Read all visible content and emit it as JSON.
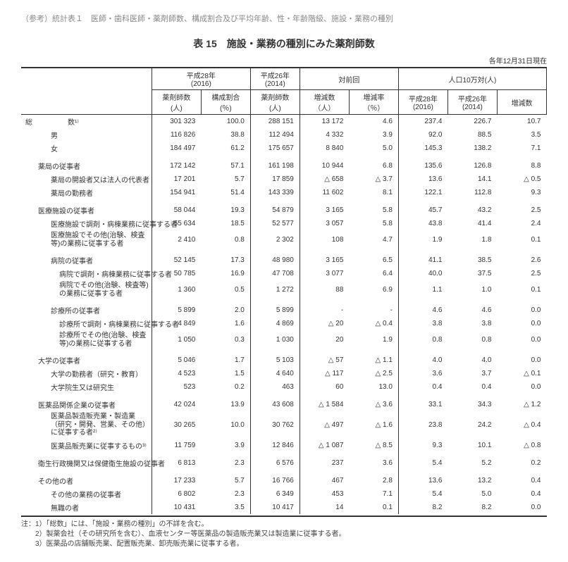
{
  "reference_note": "（参考）統計表１　医師・歯科医師・薬剤師数、構成割合及び平均年齢、性・年齢階級、施設・業務の種別",
  "title": "表 15　施設・業務の種別にみた薬剤師数",
  "date_note": "各年12月31日現在",
  "headers": {
    "group1": "平成28年\n(2016)",
    "group2": "平成26年\n(2014)",
    "group3": "対前回",
    "group4": "人口10万対(人)",
    "h1a": "薬剤師数\n(人)",
    "h1b": "構成割合\n(％)",
    "h2a": "薬剤師数\n(人)",
    "h3a": "増減数\n（人）",
    "h3b": "増減率\n（％）",
    "h4a": "平成28年\n(2016)",
    "h4b": "平成26年\n(2014)",
    "h4c": "増減数"
  },
  "rows": [
    {
      "label": "総　　　　　数¹⁾",
      "indent": 0,
      "v": [
        "301 323",
        "100.0",
        "288 151",
        "13 172",
        "4.6",
        "237.4",
        "226.7",
        "10.7"
      ]
    },
    {
      "label": "男",
      "indent": 2,
      "v": [
        "116 826",
        "38.8",
        "112 494",
        "4 332",
        "3.9",
        "92.0",
        "88.5",
        "3.5"
      ]
    },
    {
      "label": "女",
      "indent": 2,
      "v": [
        "184 497",
        "61.2",
        "175 657",
        "8 840",
        "5.0",
        "145.3",
        "138.2",
        "7.1"
      ]
    },
    {
      "spacer": true
    },
    {
      "label": "薬局の従事者",
      "indent": 1,
      "v": [
        "172 142",
        "57.1",
        "161 198",
        "10 944",
        "6.8",
        "135.6",
        "126.8",
        "8.8"
      ]
    },
    {
      "label": "薬局の開設者又は法人の代表者",
      "indent": 2,
      "v": [
        "17 201",
        "5.7",
        "17 859",
        "△ 658",
        "△ 3.7",
        "13.6",
        "14.1",
        "△ 0.5"
      ]
    },
    {
      "label": "薬局の勤務者",
      "indent": 2,
      "v": [
        "154 941",
        "51.4",
        "143 339",
        "11 602",
        "8.1",
        "122.1",
        "112.8",
        "9.3"
      ]
    },
    {
      "spacer": true
    },
    {
      "label": "医療施設の従事者",
      "indent": 1,
      "v": [
        "58 044",
        "19.3",
        "54 879",
        "3 165",
        "5.8",
        "45.7",
        "43.2",
        "2.5"
      ]
    },
    {
      "label": "医療施設で調剤・病棟業務に従事する者",
      "indent": 2,
      "v": [
        "55 634",
        "18.5",
        "52 577",
        "3 057",
        "5.8",
        "43.8",
        "41.4",
        "2.4"
      ]
    },
    {
      "label": "医療施設でその他(治験、検査等)の業務に従事する者",
      "indent": 2,
      "wrap": true,
      "v": [
        "2 410",
        "0.8",
        "2 302",
        "108",
        "4.7",
        "1.9",
        "1.8",
        "0.1"
      ]
    },
    {
      "spacer": true
    },
    {
      "label": "病院の従事者",
      "indent": 2,
      "v": [
        "52 145",
        "17.3",
        "48 980",
        "3 165",
        "6.5",
        "41.1",
        "38.5",
        "2.6"
      ]
    },
    {
      "label": "病院で調剤・病棟業務に従事する者",
      "indent": 3,
      "v": [
        "50 785",
        "16.9",
        "47 708",
        "3 077",
        "6.4",
        "40.0",
        "37.5",
        "2.5"
      ]
    },
    {
      "label": "病院でその他(治験、検査等)の業務に従事する者",
      "indent": 3,
      "wrap": true,
      "v": [
        "1 360",
        "0.5",
        "1 272",
        "88",
        "6.9",
        "1.1",
        "1.0",
        "0.1"
      ]
    },
    {
      "spacer": true
    },
    {
      "label": "診療所の従事者",
      "indent": 2,
      "v": [
        "5 899",
        "2.0",
        "5 899",
        "-",
        "-",
        "4.6",
        "4.6",
        "0.0"
      ]
    },
    {
      "label": "診療所で調剤・病棟業務に従事する者",
      "indent": 3,
      "v": [
        "4 849",
        "1.6",
        "4 869",
        "△ 20",
        "△ 0.4",
        "3.8",
        "3.8",
        "0.0"
      ]
    },
    {
      "label": "診療所でその他(治験、検査等)の業務に従事する者",
      "indent": 3,
      "wrap": true,
      "v": [
        "1 050",
        "0.3",
        "1 030",
        "20",
        "1.9",
        "0.8",
        "0.8",
        "0.0"
      ]
    },
    {
      "spacer": true
    },
    {
      "label": "大学の従事者",
      "indent": 1,
      "v": [
        "5 046",
        "1.7",
        "5 103",
        "△ 57",
        "△ 1.1",
        "4.0",
        "4.0",
        "0.0"
      ]
    },
    {
      "label": "大学の勤務者（研究・教育）",
      "indent": 2,
      "v": [
        "4 523",
        "1.5",
        "4 640",
        "△ 117",
        "△ 2.5",
        "3.6",
        "3.7",
        "△ 0.1"
      ]
    },
    {
      "label": "大学院生又は研究生",
      "indent": 2,
      "v": [
        "523",
        "0.2",
        "463",
        "60",
        "13.0",
        "0.4",
        "0.4",
        "0.0"
      ]
    },
    {
      "spacer": true
    },
    {
      "label": "医薬品関係企業の従事者",
      "indent": 1,
      "v": [
        "42 024",
        "13.9",
        "43 608",
        "△ 1 584",
        "△ 3.6",
        "33.1",
        "34.3",
        "△ 1.2"
      ]
    },
    {
      "label": "医薬品製造販売業・製造業（研究・開発、営業、その他）に従事する者²⁾",
      "indent": 2,
      "wrap": true,
      "v": [
        "30 265",
        "10.0",
        "30 762",
        "△ 497",
        "△ 1.6",
        "23.8",
        "24.2",
        "△ 0.4"
      ]
    },
    {
      "label": "医薬品販売業に従事するもの³⁾",
      "indent": 2,
      "v": [
        "11 759",
        "3.9",
        "12 846",
        "△ 1 087",
        "△ 8.5",
        "9.3",
        "10.1",
        "△ 0.8"
      ]
    },
    {
      "spacer": true
    },
    {
      "label": "衛生行政機関又は保健衛生施設の従事者",
      "indent": 1,
      "v": [
        "6 813",
        "2.3",
        "6 576",
        "237",
        "3.6",
        "5.4",
        "5.2",
        "0.2"
      ]
    },
    {
      "spacer": true
    },
    {
      "label": "その他の者",
      "indent": 1,
      "v": [
        "17 233",
        "5.7",
        "16 766",
        "467",
        "2.8",
        "13.6",
        "13.2",
        "0.4"
      ]
    },
    {
      "label": "その他の業務の従事者",
      "indent": 2,
      "v": [
        "6 802",
        "2.3",
        "6 349",
        "453",
        "7.1",
        "5.4",
        "5.0",
        "0.4"
      ]
    },
    {
      "label": "無職の者",
      "indent": 2,
      "v": [
        "10 431",
        "3.5",
        "10 417",
        "14",
        "0.1",
        "8.2",
        "8.2",
        "0.0"
      ]
    }
  ],
  "footnotes": [
    "注：1）「総数」には、「施設・業務の種別」の不詳を含む。",
    "　　2）製薬会社（その研究所を含む）、血液センター等医薬品の製造販売業又は製造業に従事する者。",
    "　　3）医薬品の店舗販売業、配置販売業、卸売販売業に従事する者。"
  ]
}
